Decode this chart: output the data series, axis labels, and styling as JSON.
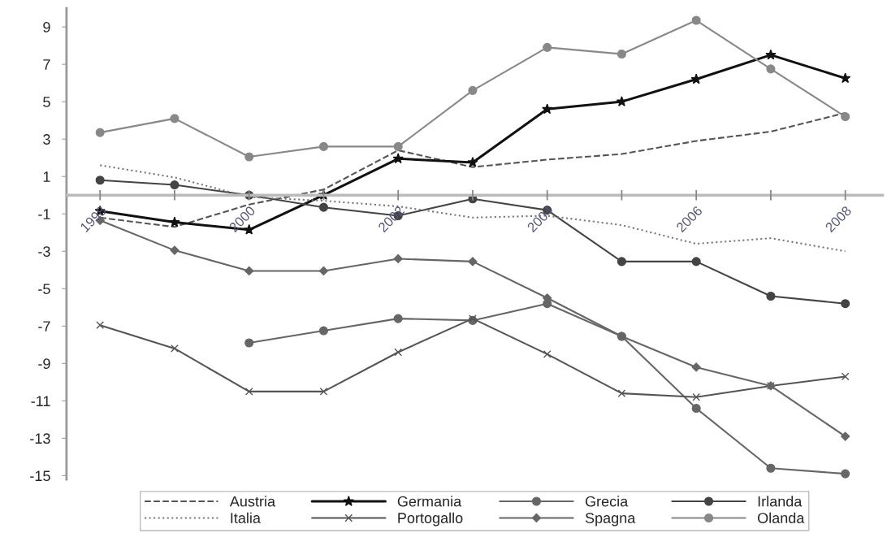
{
  "chart_data": {
    "type": "line",
    "x": [
      1998,
      1999,
      2000,
      2001,
      2002,
      2003,
      2004,
      2005,
      2006,
      2007,
      2008
    ],
    "series": [
      {
        "name": "Austria",
        "color": "#555555",
        "line_style": "dashed",
        "marker": "none",
        "values": [
          -1.2,
          -1.7,
          -0.5,
          0.3,
          2.4,
          1.5,
          1.9,
          2.2,
          2.9,
          3.4,
          4.4
        ]
      },
      {
        "name": "Germania",
        "color": "#111111",
        "line_style": "solid",
        "marker": "star",
        "values": [
          -0.85,
          -1.45,
          -1.85,
          0.0,
          1.95,
          1.75,
          4.6,
          5.0,
          6.2,
          7.5,
          6.25
        ]
      },
      {
        "name": "Grecia",
        "color": "#666666",
        "line_style": "solid",
        "marker": "circle",
        "values": [
          null,
          null,
          -7.9,
          -7.25,
          -6.6,
          -6.7,
          -5.8,
          -7.55,
          -11.4,
          -14.6,
          -14.9
        ]
      },
      {
        "name": "Irlanda",
        "color": "#444444",
        "line_style": "solid",
        "marker": "circle",
        "values": [
          0.8,
          0.55,
          0.0,
          -0.65,
          -1.1,
          -0.2,
          -0.8,
          -3.55,
          -3.55,
          -5.4,
          -5.8
        ]
      },
      {
        "name": "Italia",
        "color": "#777777",
        "line_style": "dotted",
        "marker": "none",
        "values": [
          1.6,
          0.95,
          -0.1,
          -0.3,
          -0.6,
          -1.2,
          -1.1,
          -1.6,
          -2.6,
          -2.3,
          -3.0
        ]
      },
      {
        "name": "Portogallo",
        "color": "#555555",
        "line_style": "solid",
        "marker": "cross",
        "values": [
          -6.95,
          -8.2,
          -10.5,
          -10.5,
          -8.4,
          -6.6,
          -8.5,
          -10.6,
          -10.8,
          -10.2,
          -9.7
        ]
      },
      {
        "name": "Spagna",
        "color": "#666666",
        "line_style": "solid",
        "marker": "diamond",
        "values": [
          -1.35,
          -2.95,
          -4.05,
          -4.05,
          -3.4,
          -3.55,
          -5.5,
          -7.55,
          -9.2,
          -10.2,
          -12.9
        ]
      },
      {
        "name": "Olanda",
        "color": "#888888",
        "line_style": "solid",
        "marker": "circle",
        "values": [
          3.35,
          4.1,
          2.05,
          2.6,
          2.6,
          5.6,
          7.9,
          7.55,
          9.35,
          6.75,
          4.2
        ]
      }
    ],
    "xlim": [
      1997.55,
      2008.5
    ],
    "xticks": [
      1998,
      {
        "value": 1999,
        "label": null
      },
      2000,
      {
        "value": 2001,
        "label": null
      },
      2002,
      {
        "value": 2003,
        "label": null
      },
      2004,
      {
        "value": 2005,
        "label": null
      },
      2006,
      {
        "value": 2007,
        "label": null
      },
      2008
    ],
    "ylim": [
      -15.2,
      10
    ],
    "yticks": [
      -15,
      -13,
      -11,
      -9,
      -7,
      -5,
      -3,
      -1,
      1,
      3,
      5,
      7,
      9
    ],
    "grid": false,
    "legend": "bottom"
  }
}
